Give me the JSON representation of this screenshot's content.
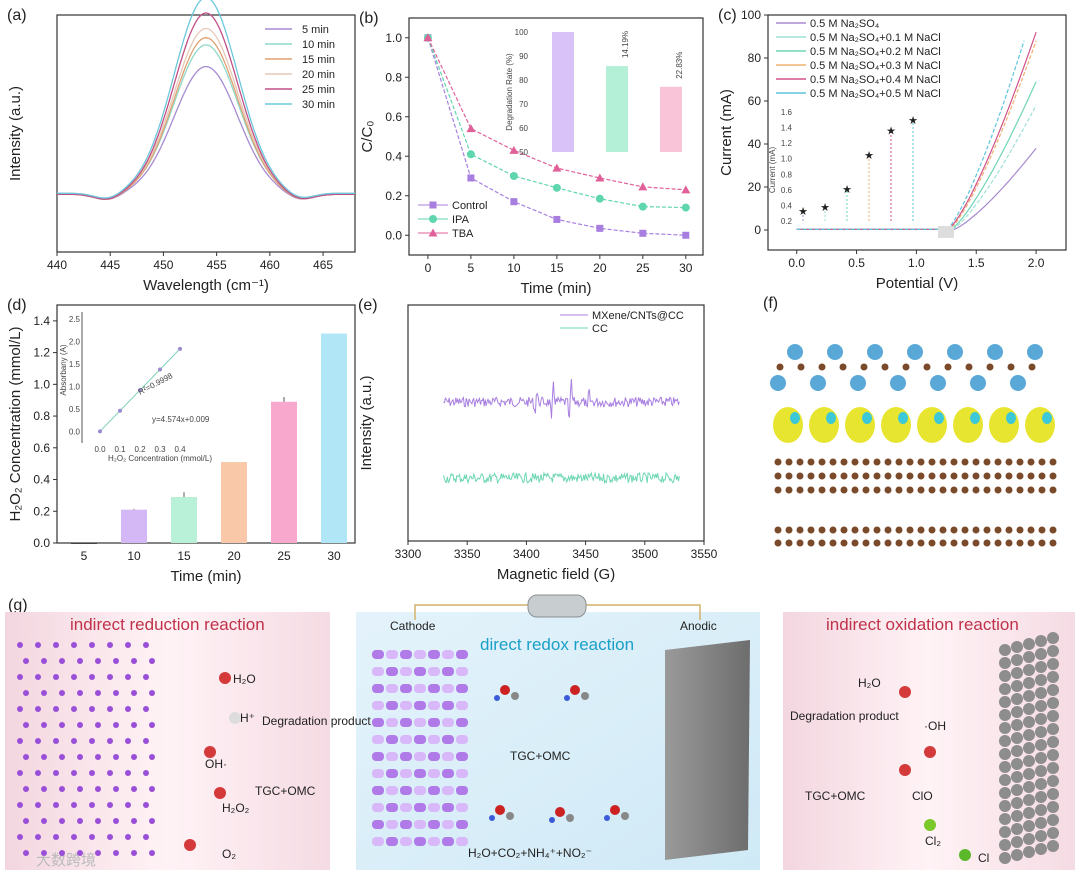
{
  "chart_data": [
    {
      "panel": "(a)",
      "type": "line",
      "xlabel": "Wavelength (cm⁻¹)",
      "ylabel": "Intensity (a.u.)",
      "xlim": [
        440,
        468
      ],
      "xticks": [
        440,
        445,
        450,
        455,
        460,
        465
      ],
      "peak_position": 454,
      "legend_position": "top-right",
      "series": [
        {
          "name": "5 min",
          "peak_intensity": 0.62,
          "color": "#a68bd0"
        },
        {
          "name": "10 min",
          "peak_intensity": 0.72,
          "color": "#8fd9c8"
        },
        {
          "name": "15 min",
          "peak_intensity": 0.76,
          "color": "#e0a070"
        },
        {
          "name": "20 min",
          "peak_intensity": 0.8,
          "color": "#e6c8b8"
        },
        {
          "name": "25 min",
          "peak_intensity": 0.88,
          "color": "#c04f86"
        },
        {
          "name": "30 min",
          "peak_intensity": 0.95,
          "color": "#6cc8dc"
        }
      ]
    },
    {
      "panel": "(b)",
      "type": "line",
      "xlabel": "Time (min)",
      "ylabel": "C/C₀",
      "x": [
        0,
        5,
        10,
        15,
        20,
        25,
        30
      ],
      "xlim": [
        -2.2,
        32
      ],
      "ylim": [
        -0.1,
        1.1
      ],
      "xticks": [
        0,
        5,
        10,
        15,
        20,
        25,
        30
      ],
      "yticks": [
        "0.0",
        "0.2",
        "0.4",
        "0.6",
        "0.8",
        "1.0"
      ],
      "legend_position": "bottom-left",
      "series": [
        {
          "name": "Control",
          "marker": "square",
          "color": "#a87fe0",
          "values": [
            1.0,
            0.29,
            0.17,
            0.08,
            0.035,
            0.01,
            0.0
          ]
        },
        {
          "name": "IPA",
          "marker": "circle",
          "color": "#5fd6ae",
          "values": [
            1.0,
            0.41,
            0.3,
            0.24,
            0.185,
            0.145,
            0.14
          ]
        },
        {
          "name": "TBA",
          "marker": "triangle",
          "color": "#e0609a",
          "values": [
            1.0,
            0.54,
            0.43,
            0.34,
            0.29,
            0.245,
            0.23
          ]
        }
      ],
      "inset": {
        "type": "bar",
        "ylabel": "Degradation Rate (%)",
        "ylim": [
          50,
          100
        ],
        "yticks": [
          "50",
          "60",
          "70",
          "80",
          "90",
          "100"
        ],
        "values": [
          100,
          85.81,
          77.17
        ],
        "colors": [
          "#d8c2f7",
          "#b4f0d8",
          "#f9c4d8"
        ],
        "annotations": [
          "14.19%",
          "22.83%"
        ]
      }
    },
    {
      "panel": "(c)",
      "type": "line",
      "xlabel": "Potential (V)",
      "ylabel": "Current (mA)",
      "xlim": [
        -0.24,
        2.25
      ],
      "ylim": [
        -9.3,
        100
      ],
      "xticks": [
        "0.0",
        "0.5",
        "1.0",
        "1.5",
        "2.0"
      ],
      "yticks": [
        "0",
        "20",
        "40",
        "60",
        "80",
        "100"
      ],
      "legend_position": "top-left",
      "series": [
        {
          "name": "0.5 M Na₂SO₄",
          "color": "#a88bd0",
          "end_potential": 2.0,
          "end_current": 38
        },
        {
          "name": "0.5 M Na₂SO₄+0.1 M NaCl",
          "color": "#9ee0d8",
          "end_potential": 2.0,
          "end_current": 58
        },
        {
          "name": "0.5 M Na₂SO₄+0.2 M NaCl",
          "color": "#6ed6b4",
          "end_potential": 2.0,
          "end_current": 69
        },
        {
          "name": "0.5 M Na₂SO₄+0.3 M NaCl",
          "color": "#f0b070",
          "end_potential": 2.0,
          "end_current": 88
        },
        {
          "name": "0.5 M Na₂SO₄+0.4 M NaCl",
          "color": "#d0508a",
          "end_potential": 2.0,
          "end_current": 92
        },
        {
          "name": "0.5 M Na₂SO₄+0.5 M NaCl",
          "color": "#5ec4dc",
          "end_potential": 1.9,
          "end_current": 88
        }
      ],
      "inset": {
        "ylabel": "Current (mA)",
        "yticks": [
          "0.2",
          "0.4",
          "0.6",
          "0.8",
          "1.0",
          "1.2",
          "1.4",
          "1.6"
        ],
        "values": [
          0.33,
          0.38,
          0.61,
          1.05,
          1.36,
          1.5
        ]
      }
    },
    {
      "panel": "(d)",
      "type": "bar",
      "xlabel": "Time (min)",
      "ylabel": "H₂O₂ Concentration (mmol/L)",
      "categories": [
        "5",
        "10",
        "15",
        "20",
        "25",
        "30"
      ],
      "values": [
        0.0,
        0.21,
        0.29,
        0.51,
        0.89,
        1.32
      ],
      "errors": [
        0,
        0.005,
        0.03,
        0,
        0.03,
        0
      ],
      "colors": [
        "#444444",
        "#d4b8f5",
        "#b8f0d8",
        "#f8c8a8",
        "#f8a8cc",
        "#b0e6f6"
      ],
      "ylim": [
        0,
        1.5
      ],
      "yticks": [
        "0.0",
        "0.2",
        "0.4",
        "0.6",
        "0.8",
        "1.0",
        "1.2",
        "1.4"
      ],
      "inset": {
        "type": "scatter",
        "xlabel": "H₂O₂ Concentration (mmol/L)",
        "ylabel": "Absorbany (A)",
        "x": [
          0.0,
          0.1,
          0.2,
          0.3,
          0.4
        ],
        "y": [
          0.009,
          0.466,
          0.924,
          1.381,
          1.839
        ],
        "xticks": [
          "0.0",
          "0.1",
          "0.2",
          "0.3",
          "0.4"
        ],
        "yticks": [
          "0.0",
          "0.5",
          "1.0",
          "1.5",
          "2.0",
          "2.5"
        ],
        "xlim": [
          -0.02,
          0.75
        ],
        "ylim": [
          -0.25,
          2.7
        ],
        "equation": "y=4.574x+0.009",
        "r_squared": "R²=0.9998"
      }
    },
    {
      "panel": "(e)",
      "type": "line",
      "xlabel": "Magnetic field (G)",
      "ylabel": "Intensity (a.u.)",
      "xlim": [
        3300,
        3550
      ],
      "xticks": [
        "3300",
        "3350",
        "3400",
        "3450",
        "3500",
        "3550"
      ],
      "data_range": [
        3330,
        3530
      ],
      "legend_position": "top-right",
      "series": [
        {
          "name": "MXene/CNTs@CC",
          "color": "#a87fe0",
          "signal_peaks": [
            3408,
            3422,
            3437,
            3452
          ],
          "relative_heights": [
            1,
            2,
            2,
            1
          ]
        },
        {
          "name": "CC",
          "color": "#6ed6b4",
          "signal_peaks": [],
          "relative_heights": []
        }
      ]
    }
  ],
  "panels": {
    "f": "(f)",
    "g": "(g)"
  },
  "schematic": {
    "left_title": "indirect reduction reaction",
    "center_title": "direct redox reaction",
    "right_title": "indirect oxidation reaction",
    "cathode": "Cathode",
    "anodic": "Anodic",
    "left_labels": {
      "h2o": "H₂O",
      "h": "H⁺",
      "oh": "OH·",
      "h2o2": "H₂O₂",
      "o2": "O₂",
      "degradation": "Degradation product",
      "tgc": "TGC+OMC"
    },
    "center_labels": {
      "tgc": "TGC+OMC",
      "products": "H₂O+CO₂+NH₄⁺+NO₂⁻"
    },
    "right_labels": {
      "h2o": "H₂O",
      "oh": "·OH",
      "degradation": "Degradation product",
      "tgc": "TGC+OMC",
      "clo": "ClO",
      "cl2": "Cl₂",
      "cl": "Cl"
    }
  },
  "watermark": "大数跨境"
}
